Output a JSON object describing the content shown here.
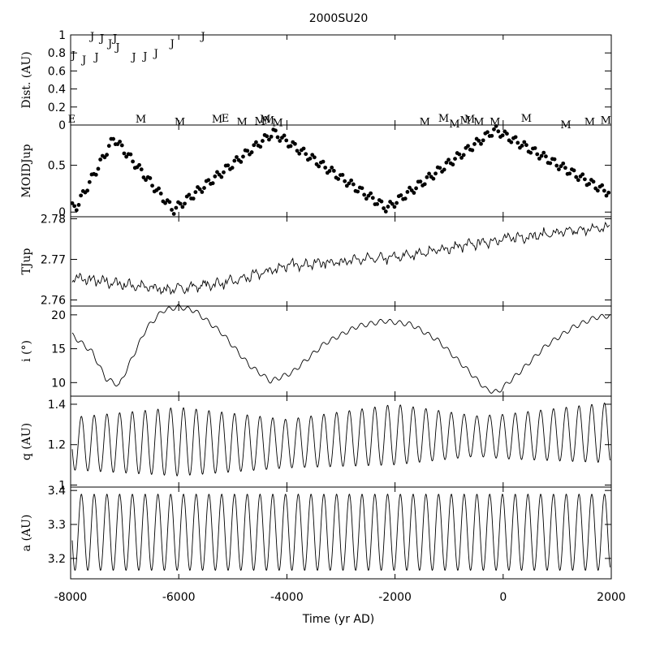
{
  "chart_data": {
    "type": "line",
    "title": "2000SU20",
    "xlabel": "Time (yr AD)",
    "xlim": [
      -8000,
      2000
    ],
    "x_ticks": [
      "-8000",
      "-6000",
      "-4000",
      "-2000",
      "0",
      "2000"
    ],
    "panels": [
      {
        "id": "dist",
        "ylabel": "Dist. (AU)",
        "style": "letters",
        "ylim": [
          0,
          1
        ],
        "y_ticks": [
          "0",
          "0.2",
          "0.4",
          "0.6",
          "0.8",
          "1"
        ],
        "encounters": [
          {
            "t": -7950,
            "d": 0.78,
            "body": "J"
          },
          {
            "t": -7750,
            "d": 0.73,
            "body": "J"
          },
          {
            "t": -7600,
            "d": 0.99,
            "body": "J"
          },
          {
            "t": -7520,
            "d": 0.76,
            "body": "J"
          },
          {
            "t": -7420,
            "d": 0.97,
            "body": "J"
          },
          {
            "t": -7270,
            "d": 0.91,
            "body": "J"
          },
          {
            "t": -7180,
            "d": 0.97,
            "body": "J"
          },
          {
            "t": -7130,
            "d": 0.87,
            "body": "J"
          },
          {
            "t": -6830,
            "d": 0.76,
            "body": "J"
          },
          {
            "t": -6620,
            "d": 0.77,
            "body": "J"
          },
          {
            "t": -6420,
            "d": 0.8,
            "body": "J"
          },
          {
            "t": -6120,
            "d": 0.91,
            "body": "J"
          },
          {
            "t": -5550,
            "d": 0.99,
            "body": "J"
          },
          {
            "t": -7980,
            "d": 0.07,
            "body": "E"
          },
          {
            "t": -6700,
            "d": 0.07,
            "body": "M"
          },
          {
            "t": -5980,
            "d": 0.04,
            "body": "M"
          },
          {
            "t": -5290,
            "d": 0.07,
            "body": "M"
          },
          {
            "t": -5140,
            "d": 0.08,
            "body": "E"
          },
          {
            "t": -4830,
            "d": 0.04,
            "body": "M"
          },
          {
            "t": -4500,
            "d": 0.05,
            "body": "M"
          },
          {
            "t": -4400,
            "d": 0.07,
            "body": "M"
          },
          {
            "t": -4330,
            "d": 0.06,
            "body": "M"
          },
          {
            "t": -4170,
            "d": 0.03,
            "body": "M"
          },
          {
            "t": -1450,
            "d": 0.04,
            "body": "M"
          },
          {
            "t": -1100,
            "d": 0.08,
            "body": "M"
          },
          {
            "t": -900,
            "d": 0.02,
            "body": "M"
          },
          {
            "t": -700,
            "d": 0.06,
            "body": "M"
          },
          {
            "t": -620,
            "d": 0.07,
            "body": "M"
          },
          {
            "t": -450,
            "d": 0.04,
            "body": "M"
          },
          {
            "t": -150,
            "d": 0.04,
            "body": "M"
          },
          {
            "t": 430,
            "d": 0.08,
            "body": "M"
          },
          {
            "t": 1160,
            "d": 0.01,
            "body": "M"
          },
          {
            "t": 1600,
            "d": 0.04,
            "body": "M"
          },
          {
            "t": 1900,
            "d": 0.06,
            "body": "M"
          }
        ]
      },
      {
        "id": "moid",
        "ylabel": "MOIDJup",
        "style": "dots",
        "ylim": [
          -0.05,
          0.93
        ],
        "y_ticks": [
          "0",
          "0.5"
        ],
        "series": {
          "kind": "triangle",
          "periods": [
            [
              -7900,
              0.05
            ],
            [
              -7200,
              0.79
            ],
            [
              -6100,
              0.02
            ],
            [
              -4250,
              0.85
            ],
            [
              -2150,
              0.04
            ],
            [
              -150,
              0.88
            ],
            [
              1900,
              0.22
            ]
          ],
          "ripple": 0.045,
          "rippleP": 178,
          "step": 40
        }
      },
      {
        "id": "tjup",
        "ylabel": "TJup",
        "style": "line",
        "ylim": [
          2.7585,
          2.7805
        ],
        "y_ticks": [
          "2.76",
          "2.77",
          "2.78"
        ],
        "series": {
          "kind": "noise",
          "knots": [
            [
              -8000,
              2.7655
            ],
            [
              -6200,
              2.7625
            ],
            [
              -5000,
              2.7645
            ],
            [
              -4000,
              2.7685
            ],
            [
              -2000,
              2.7705
            ],
            [
              0,
              2.775
            ],
            [
              2000,
              2.778
            ]
          ],
          "noise": 0.0012,
          "step": 20
        }
      },
      {
        "id": "inc",
        "ylabel": "i (°)",
        "style": "line",
        "ylim": [
          8,
          21.3
        ],
        "y_ticks": [
          "10",
          "15",
          "20"
        ],
        "series": {
          "kind": "knots",
          "knots": [
            [
              -8000,
              17.2
            ],
            [
              -7600,
              14.5
            ],
            [
              -7350,
              10.6
            ],
            [
              -7100,
              9.6
            ],
            [
              -6900,
              13
            ],
            [
              -6600,
              18
            ],
            [
              -6300,
              20.6
            ],
            [
              -6000,
              21.2
            ],
            [
              -5700,
              20.6
            ],
            [
              -5200,
              17.3
            ],
            [
              -4700,
              12.6
            ],
            [
              -4300,
              10.2
            ],
            [
              -3900,
              11.5
            ],
            [
              -3300,
              15.8
            ],
            [
              -2700,
              18.3
            ],
            [
              -2200,
              19.1
            ],
            [
              -1700,
              18.6
            ],
            [
              -1200,
              16.2
            ],
            [
              -700,
              12.2
            ],
            [
              -300,
              8.9
            ],
            [
              -100,
              8.6
            ],
            [
              300,
              11.5
            ],
            [
              800,
              15.5
            ],
            [
              1300,
              18.2
            ],
            [
              1700,
              19.6
            ],
            [
              2000,
              19.9
            ]
          ],
          "ripple": 0.35,
          "rippleP": 178,
          "step": 15
        }
      },
      {
        "id": "q",
        "ylabel": "q (AU)",
        "style": "line",
        "ylim": [
          0.99,
          1.44
        ],
        "y_ticks": [
          "1",
          "1.2",
          "1.4"
        ],
        "series": {
          "kind": "osc",
          "period": 236,
          "phase": -7860,
          "mean": [
            [
              -8000,
              1.205
            ],
            [
              -6000,
              1.215
            ],
            [
              -4000,
              1.205
            ],
            [
              -2000,
              1.25
            ],
            [
              0,
              1.24
            ],
            [
              2000,
              1.26
            ]
          ],
          "amp": [
            [
              -8000,
              0.13
            ],
            [
              -6000,
              0.17
            ],
            [
              -4000,
              0.12
            ],
            [
              -2000,
              0.15
            ],
            [
              -500,
              0.1
            ],
            [
              2000,
              0.15
            ]
          ],
          "step": 6
        }
      },
      {
        "id": "a",
        "ylabel": "a (AU)",
        "style": "line",
        "ylim": [
          3.14,
          3.41
        ],
        "y_ticks": [
          "3.2",
          "3.3",
          "3.4"
        ],
        "series": {
          "kind": "osc",
          "period": 236,
          "phase": -7860,
          "mean": [
            [
              -8000,
              3.277
            ],
            [
              2000,
              3.277
            ]
          ],
          "amp": [
            [
              -8000,
              0.112
            ],
            [
              2000,
              0.112
            ]
          ],
          "step": 6
        }
      }
    ]
  }
}
